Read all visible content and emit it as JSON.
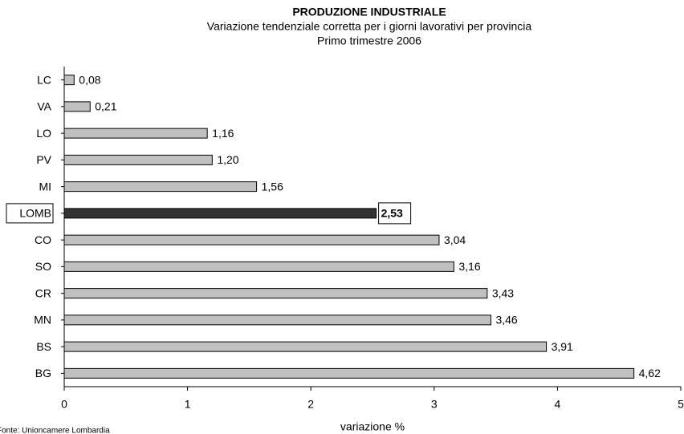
{
  "chart_data": {
    "type": "hbar",
    "title": "PRODUZIONE INDUSTRIALE",
    "subtitle": "Variazione tendenziale corretta per i giorni lavorativi per provincia",
    "subtitle2": "Primo trimestre 2006",
    "x_label": "variazione %",
    "source": "Fonte: Unioncamere Lombardia",
    "categories": [
      "LC",
      "VA",
      "LO",
      "PV",
      "MI",
      "LOMB",
      "CO",
      "SO",
      "CR",
      "MN",
      "BS",
      "BG"
    ],
    "values": [
      0.08,
      0.21,
      1.16,
      1.2,
      1.56,
      2.53,
      3.04,
      3.16,
      3.43,
      3.46,
      3.91,
      4.62
    ],
    "value_labels": [
      "0,08",
      "0,21",
      "1,16",
      "1,20",
      "1,56",
      "2,53",
      "3,04",
      "3,16",
      "3,43",
      "3,46",
      "3,91",
      "4,62"
    ],
    "color": "#c0c0c0",
    "highlight": "LOMB",
    "highlight_color": "#333333",
    "xlim": [
      0,
      5
    ],
    "xticks": [
      0,
      1,
      2,
      3,
      4,
      5
    ],
    "grid": false
  }
}
